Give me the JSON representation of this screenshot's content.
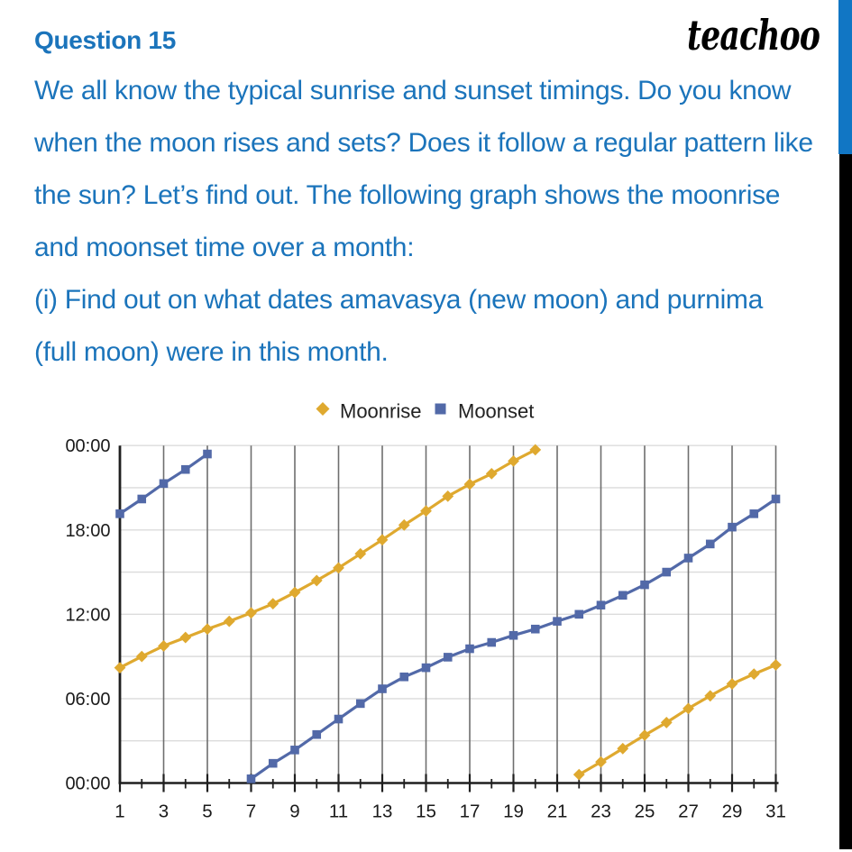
{
  "header": {
    "question_label": "Question 15",
    "brand": "teachoo"
  },
  "question": {
    "lines": [
      "We all know the typical sunrise and sunset timings. Do you know",
      "when the moon rises and sets? Does it follow a regular pattern like",
      "the sun? Let’s find out. The following graph shows the moonrise",
      "and moonset time over a month:",
      "(i) Find out on what dates amavasya (new moon) and purnima",
      "(full moon) were in this month."
    ]
  },
  "colors": {
    "question_text": "#1B74BB",
    "accent_bar_blue": "#1176C4",
    "accent_bar_black": "#000000",
    "moonrise": "#DFA92F",
    "moonset": "#5269A8",
    "axis": "#1F1F1F",
    "tick_label": "#1A1A1A",
    "vertical_grid": "#6E6E6E",
    "horizontal_grid": "#DBDBDB",
    "legend_text": "#212121"
  },
  "chart_data": {
    "type": "line",
    "title": "",
    "xlabel": "",
    "ylabel": "",
    "x": [
      1,
      2,
      3,
      4,
      5,
      6,
      7,
      8,
      9,
      10,
      11,
      12,
      13,
      14,
      15,
      16,
      17,
      18,
      19,
      20,
      21,
      22,
      23,
      24,
      25,
      26,
      27,
      28,
      29,
      30,
      31
    ],
    "x_tick_labels": [
      "1",
      "3",
      "5",
      "7",
      "9",
      "11",
      "13",
      "15",
      "17",
      "19",
      "21",
      "23",
      "25",
      "27",
      "29",
      "31"
    ],
    "x_ticks_days": [
      1,
      3,
      5,
      7,
      9,
      11,
      13,
      15,
      17,
      19,
      21,
      23,
      25,
      27,
      29,
      31
    ],
    "y_tick_labels": [
      "00:00",
      "06:00",
      "12:00",
      "18:00",
      "00:00"
    ],
    "y_ticks_hours": [
      0,
      6,
      12,
      18,
      24
    ],
    "xlim": [
      1,
      31
    ],
    "ylim": [
      0,
      24
    ],
    "grid": {
      "vertical_every_odd_day": true,
      "horizontal_hours_step": 3
    },
    "legend_position": "top-center",
    "legend": [
      {
        "label": "Moonrise",
        "marker": "diamond",
        "color": "#DFA92F"
      },
      {
        "label": "Moonset",
        "marker": "square",
        "color": "#5269A8"
      }
    ],
    "series": [
      {
        "name": "Moonrise",
        "marker": "diamond",
        "color": "#DFA92F",
        "values": [
          8.2,
          9.0,
          9.75,
          10.35,
          10.95,
          11.5,
          12.1,
          12.75,
          13.55,
          14.4,
          15.3,
          16.3,
          17.3,
          18.35,
          19.35,
          20.4,
          21.25,
          22.0,
          22.9,
          23.7,
          null,
          0.6,
          1.5,
          2.45,
          3.4,
          4.3,
          5.3,
          6.2,
          7.05,
          7.75,
          8.4
        ]
      },
      {
        "name": "Moonset",
        "marker": "square",
        "color": "#5269A8",
        "values": [
          19.15,
          20.2,
          21.3,
          22.3,
          23.4,
          null,
          0.3,
          1.4,
          2.35,
          3.45,
          4.55,
          5.65,
          6.7,
          7.55,
          8.2,
          8.95,
          9.55,
          10.0,
          10.5,
          10.95,
          11.5,
          12.0,
          12.65,
          13.35,
          14.1,
          15.0,
          16.0,
          17.0,
          18.2,
          19.15,
          20.2
        ]
      }
    ]
  }
}
